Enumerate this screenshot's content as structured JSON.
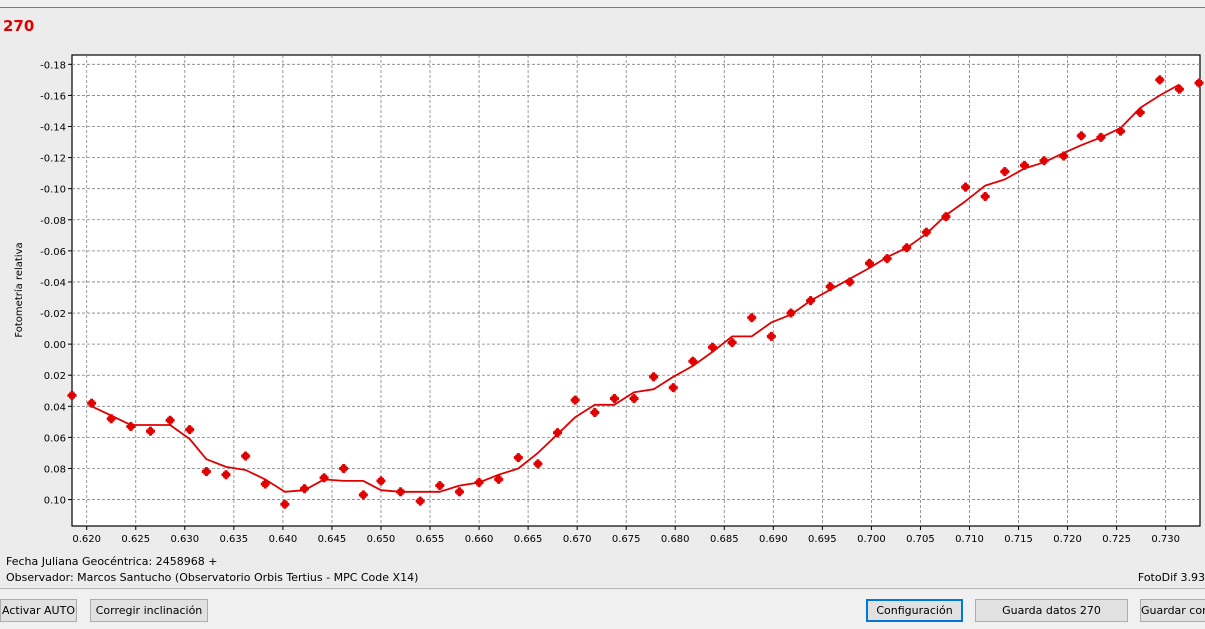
{
  "window": {
    "title": "270"
  },
  "footer": {
    "fecha_label": "Fecha Juliana Geocéntrica: 2458968 +",
    "observador": "Observador: Marcos Santucho (Observatorio Orbis Tertius - MPC Code X14)",
    "version": "FotoDif 3.93"
  },
  "buttons": {
    "activar_auto": "Activar AUTO",
    "corregir": "Corregir inclinación",
    "configuracion": "Configuración",
    "guarda_datos": "Guarda datos 270",
    "guardar_con": "Guardar con"
  },
  "colors": {
    "series": "#e00000",
    "title": "#e00000",
    "grid": "#808080"
  },
  "chart_data": {
    "type": "scatter",
    "title": "",
    "xlabel": "",
    "ylabel": "Fotometría relativa",
    "xlim": [
      0.6185,
      0.7335
    ],
    "ylim": [
      -0.186,
      0.117
    ],
    "y_inverted": true,
    "grid": true,
    "x_ticks": [
      "0.620",
      "0.625",
      "0.630",
      "0.635",
      "0.640",
      "0.645",
      "0.650",
      "0.655",
      "0.660",
      "0.665",
      "0.670",
      "0.675",
      "0.680",
      "0.685",
      "0.690",
      "0.695",
      "0.700",
      "0.705",
      "0.710",
      "0.715",
      "0.720",
      "0.725",
      "0.730"
    ],
    "y_ticks": [
      "-0.18",
      "-0.16",
      "-0.14",
      "-0.12",
      "-0.10",
      "-0.08",
      "-0.06",
      "-0.04",
      "-0.02",
      "0.00",
      "0.02",
      "0.04",
      "0.06",
      "0.08",
      "0.10"
    ],
    "series": [
      {
        "type": "scatter",
        "x": [
          0.6185,
          0.6205,
          0.6225,
          0.6245,
          0.6265,
          0.6285,
          0.6305,
          0.6322,
          0.6342,
          0.6362,
          0.6382,
          0.6402,
          0.6422,
          0.6442,
          0.6462,
          0.6482,
          0.65,
          0.652,
          0.654,
          0.656,
          0.658,
          0.66,
          0.662,
          0.664,
          0.666,
          0.668,
          0.6698,
          0.6718,
          0.6738,
          0.6758,
          0.6778,
          0.6798,
          0.6818,
          0.6838,
          0.6858,
          0.6878,
          0.6898,
          0.6918,
          0.6938,
          0.6958,
          0.6978,
          0.6998,
          0.7016,
          0.7036,
          0.7056,
          0.7076,
          0.7096,
          0.7116,
          0.7136,
          0.7156,
          0.7176,
          0.7196,
          0.7214,
          0.7234,
          0.7254,
          0.7274,
          0.7294,
          0.7314,
          0.7334
        ],
        "values": [
          0.033,
          0.038,
          0.048,
          0.053,
          0.056,
          0.049,
          0.055,
          0.082,
          0.084,
          0.072,
          0.09,
          0.103,
          0.093,
          0.086,
          0.08,
          0.097,
          0.088,
          0.095,
          0.101,
          0.091,
          0.095,
          0.089,
          0.087,
          0.073,
          0.077,
          0.057,
          0.036,
          0.044,
          0.035,
          0.035,
          0.021,
          0.028,
          0.011,
          0.002,
          -0.001,
          -0.017,
          -0.005,
          -0.02,
          -0.028,
          -0.037,
          -0.04,
          -0.052,
          -0.055,
          -0.062,
          -0.072,
          -0.082,
          -0.101,
          -0.095,
          -0.111,
          -0.115,
          -0.118,
          -0.121,
          -0.134,
          -0.133,
          -0.137,
          -0.149,
          -0.17,
          -0.164,
          -0.168
        ]
      },
      {
        "type": "line",
        "x": [
          0.6205,
          0.6225,
          0.6245,
          0.6265,
          0.6285,
          0.6305,
          0.6322,
          0.6342,
          0.6362,
          0.6382,
          0.6402,
          0.6422,
          0.6442,
          0.6462,
          0.6482,
          0.65,
          0.652,
          0.654,
          0.656,
          0.658,
          0.66,
          0.662,
          0.664,
          0.666,
          0.668,
          0.6698,
          0.6718,
          0.6738,
          0.6758,
          0.6778,
          0.6798,
          0.6818,
          0.6838,
          0.6858,
          0.6878,
          0.6898,
          0.6918,
          0.6938,
          0.6958,
          0.6978,
          0.6998,
          0.7016,
          0.7036,
          0.7056,
          0.7076,
          0.7096,
          0.7116,
          0.7136,
          0.7156,
          0.7176,
          0.7196,
          0.7214,
          0.7234,
          0.7254,
          0.7274,
          0.7294,
          0.7314
        ],
        "values": [
          0.04,
          0.046,
          0.052,
          0.052,
          0.052,
          0.061,
          0.074,
          0.079,
          0.081,
          0.087,
          0.095,
          0.094,
          0.087,
          0.088,
          0.088,
          0.094,
          0.095,
          0.095,
          0.095,
          0.091,
          0.089,
          0.084,
          0.08,
          0.07,
          0.058,
          0.047,
          0.039,
          0.039,
          0.031,
          0.029,
          0.021,
          0.014,
          0.005,
          -0.005,
          -0.005,
          -0.014,
          -0.019,
          -0.028,
          -0.035,
          -0.042,
          -0.049,
          -0.056,
          -0.062,
          -0.071,
          -0.083,
          -0.092,
          -0.102,
          -0.106,
          -0.113,
          -0.117,
          -0.123,
          -0.128,
          -0.133,
          -0.139,
          -0.152,
          -0.16,
          -0.167
        ]
      }
    ]
  }
}
